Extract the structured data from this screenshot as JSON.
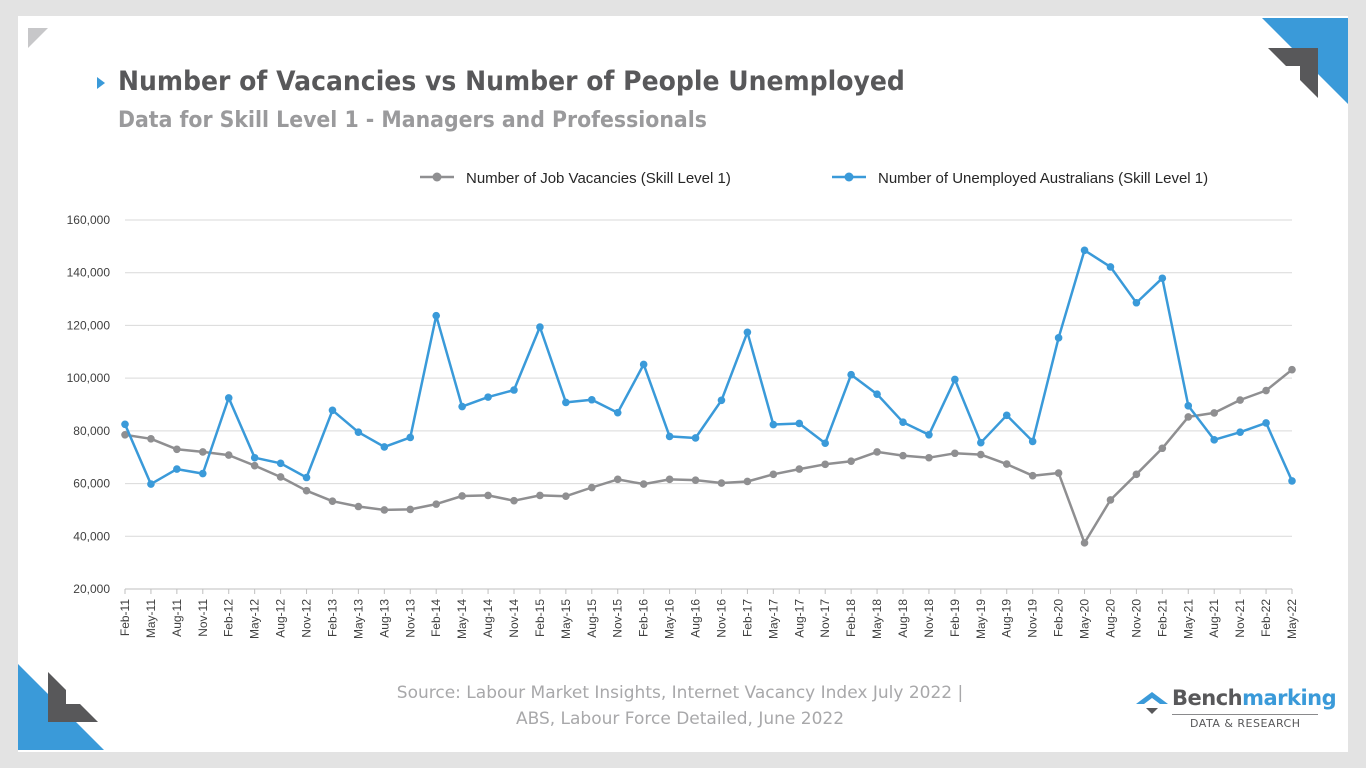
{
  "header": {
    "title": "Number of Vacancies vs Number of People Unemployed",
    "subtitle": "Data for Skill Level 1 - Managers and Professionals"
  },
  "footer": {
    "source_line1": "Source: Labour Market Insights, Internet Vacancy Index July 2022 |",
    "source_line2": "ABS, Labour Force Detailed, June 2022"
  },
  "logo": {
    "wordmark_part1": "Bench",
    "wordmark_part2": "marking",
    "tagline": "DATA & RESEARCH"
  },
  "colors": {
    "accent_blue": "#3a9ad9",
    "vacancies_grey": "#8f8f91",
    "text_dark": "#58585a"
  },
  "chart_data": {
    "type": "line",
    "categories": [
      "Feb-11",
      "May-11",
      "Aug-11",
      "Nov-11",
      "Feb-12",
      "May-12",
      "Aug-12",
      "Nov-12",
      "Feb-13",
      "May-13",
      "Aug-13",
      "Nov-13",
      "Feb-14",
      "May-14",
      "Aug-14",
      "Nov-14",
      "Feb-15",
      "May-15",
      "Aug-15",
      "Nov-15",
      "Feb-16",
      "May-16",
      "Aug-16",
      "Nov-16",
      "Feb-17",
      "May-17",
      "Aug-17",
      "Nov-17",
      "Feb-18",
      "May-18",
      "Aug-18",
      "Nov-18",
      "Feb-19",
      "May-19",
      "Aug-19",
      "Nov-19",
      "Feb-20",
      "May-20",
      "Aug-20",
      "Nov-20",
      "Feb-21",
      "May-21",
      "Aug-21",
      "Nov-21",
      "Feb-22",
      "May-22"
    ],
    "series": [
      {
        "name": "Number of Job Vacancies (Skill Level 1)",
        "color": "#8f8f91",
        "values": [
          78500,
          77000,
          73000,
          72000,
          70800,
          66800,
          62500,
          57300,
          53300,
          51300,
          50000,
          50200,
          52200,
          55300,
          55500,
          53500,
          55500,
          55200,
          58500,
          61600,
          59800,
          61600,
          61300,
          60200,
          60800,
          63500,
          65500,
          67300,
          68500,
          72000,
          70600,
          69800,
          71500,
          71000,
          67400,
          63000,
          64000,
          37500,
          53800,
          63500,
          73400,
          85300,
          86800,
          91700,
          95300,
          103200
        ]
      },
      {
        "name": "Number of Unemployed Australians (Skill Level 1)",
        "color": "#3a9ad9",
        "values": [
          82500,
          59800,
          65500,
          63800,
          92500,
          69800,
          67700,
          62300,
          87800,
          79500,
          73900,
          77500,
          123700,
          89200,
          92800,
          95500,
          119400,
          90800,
          91800,
          86900,
          105200,
          77900,
          77300,
          91600,
          117400,
          82400,
          82800,
          75300,
          101300,
          93900,
          83300,
          78500,
          99500,
          75500,
          85900,
          76000,
          115300,
          148500,
          142200,
          128600,
          137900,
          89500,
          76600,
          79500,
          83000,
          61000
        ]
      }
    ],
    "ylim": [
      20000,
      160000
    ],
    "yticks": [
      "20,000",
      "40,000",
      "60,000",
      "80,000",
      "100,000",
      "120,000",
      "140,000",
      "160,000"
    ],
    "grid": true,
    "legend_position": "top"
  }
}
